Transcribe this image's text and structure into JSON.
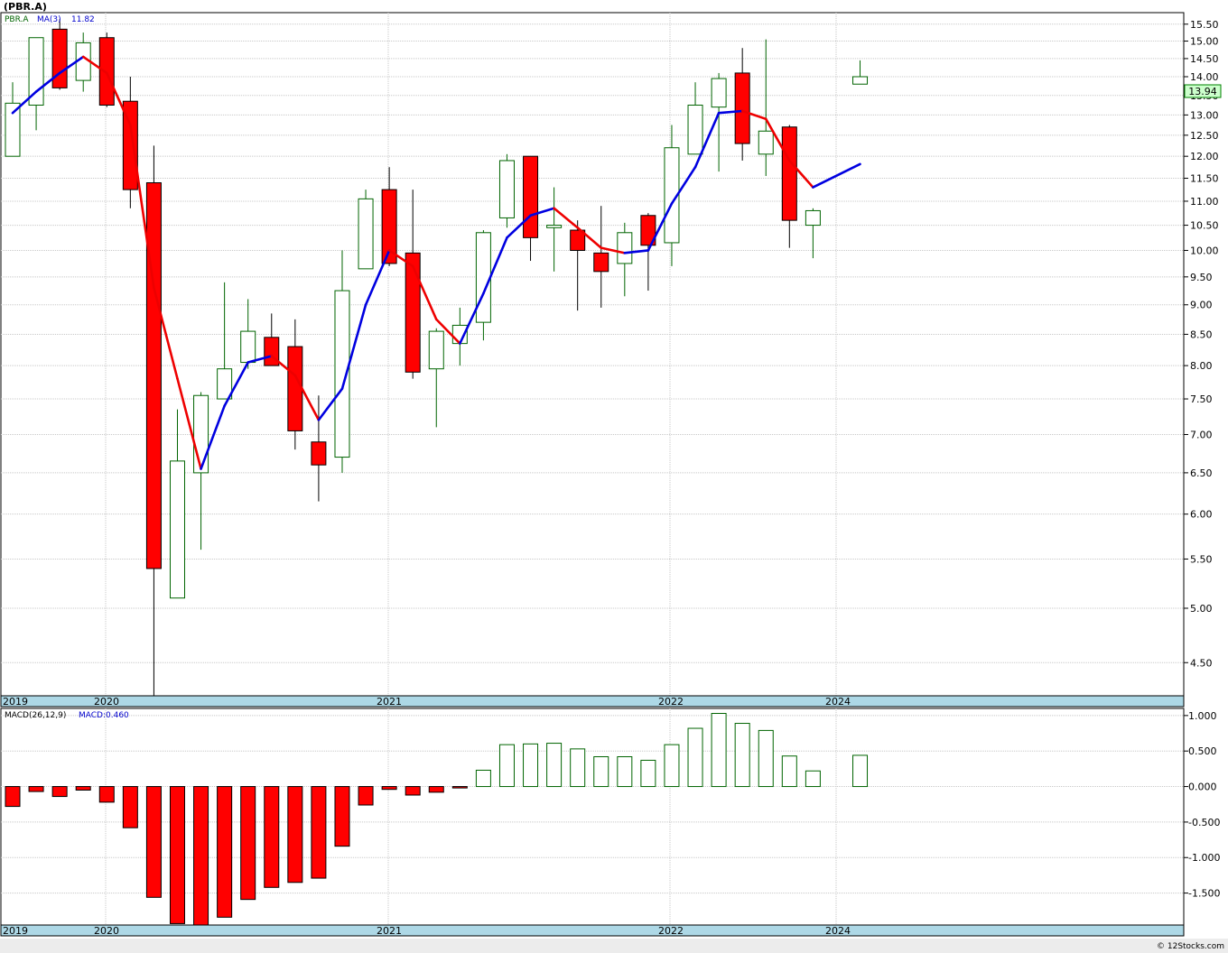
{
  "chart_data": [
    {
      "type": "candlestick",
      "title": "(PBR.A)",
      "symbol_label": "PBR.A",
      "ma_label": "MA(3)",
      "ma_value": "11.82",
      "last_price": "13.94",
      "y_scale": "log",
      "ylim": [
        4.22,
        15.85
      ],
      "y_ticks": [
        "15.50",
        "15.00",
        "14.50",
        "14.00",
        "13.50",
        "13.00",
        "12.50",
        "12.00",
        "11.50",
        "11.00",
        "10.50",
        "10.00",
        "9.50",
        "9.00",
        "8.50",
        "8.00",
        "7.50",
        "7.00",
        "6.50",
        "6.00",
        "5.50",
        "5.00",
        "4.50"
      ],
      "x_labels": [
        "2019",
        "2020",
        "2021",
        "2022",
        "2024"
      ],
      "grid": true,
      "candles": [
        {
          "o": 12.0,
          "h": 13.85,
          "l": null,
          "c": 13.3
        },
        {
          "o": 13.25,
          "h": 15.1,
          "l": 12.62,
          "c": 15.1
        },
        {
          "o": 15.35,
          "h": 15.65,
          "l": 13.65,
          "c": 13.7
        },
        {
          "o": 13.9,
          "h": 15.25,
          "l": 13.6,
          "c": 14.95
        },
        {
          "o": 15.1,
          "h": 15.25,
          "l": 13.2,
          "c": 13.25
        },
        {
          "o": 13.35,
          "h": 14.0,
          "l": 10.85,
          "c": 11.25
        },
        {
          "o": 11.4,
          "h": 12.25,
          "l": 4.2,
          "c": 5.4
        },
        {
          "o": 5.1,
          "h": 7.35,
          "l": null,
          "c": 6.65
        },
        {
          "o": 6.5,
          "h": 7.6,
          "l": 5.6,
          "c": 7.55
        },
        {
          "o": 7.5,
          "h": 9.4,
          "l": null,
          "c": 7.95
        },
        {
          "o": 8.05,
          "h": 9.1,
          "l": 7.95,
          "c": 8.55
        },
        {
          "o": 8.45,
          "h": 8.85,
          "l": 8.0,
          "c": 8.0
        },
        {
          "o": 8.3,
          "h": 8.75,
          "l": 6.8,
          "c": 7.05
        },
        {
          "o": 6.9,
          "h": 7.55,
          "l": 6.15,
          "c": 6.6
        },
        {
          "o": 6.7,
          "h": 10.0,
          "l": 6.5,
          "c": 9.25
        },
        {
          "o": 9.65,
          "h": 11.25,
          "l": null,
          "c": 11.05
        },
        {
          "o": 11.25,
          "h": 11.75,
          "l": 9.7,
          "c": 9.75
        },
        {
          "o": 9.95,
          "h": 11.25,
          "l": 7.8,
          "c": 7.9
        },
        {
          "o": 7.95,
          "h": 8.6,
          "l": 7.1,
          "c": 8.55
        },
        {
          "o": 8.35,
          "h": 8.95,
          "l": 8.0,
          "c": 8.65
        },
        {
          "o": 8.7,
          "h": 10.4,
          "l": 8.4,
          "c": 10.35
        },
        {
          "o": 10.65,
          "h": 12.05,
          "l": 10.45,
          "c": 11.9
        },
        {
          "o": 12.0,
          "h": 12.0,
          "l": 9.8,
          "c": 10.25
        },
        {
          "o": 10.45,
          "h": 11.3,
          "l": 9.6,
          "c": 10.5
        },
        {
          "o": 10.4,
          "h": 10.6,
          "l": 8.9,
          "c": 10.0
        },
        {
          "o": 9.95,
          "h": 10.9,
          "l": 8.95,
          "c": 9.6
        },
        {
          "o": 9.75,
          "h": 10.55,
          "l": 9.15,
          "c": 10.35
        },
        {
          "o": 10.7,
          "h": 10.75,
          "l": 9.25,
          "c": 10.1
        },
        {
          "o": 10.15,
          "h": 12.75,
          "l": 9.7,
          "c": 12.2
        },
        {
          "o": 12.05,
          "h": 13.85,
          "l": null,
          "c": 13.25
        },
        {
          "o": 13.2,
          "h": 14.1,
          "l": 11.65,
          "c": 13.95
        },
        {
          "o": 14.1,
          "h": 14.8,
          "l": 11.9,
          "c": 12.3
        },
        {
          "o": 12.05,
          "h": 15.05,
          "l": 11.55,
          "c": 12.6
        },
        {
          "o": 12.7,
          "h": 12.75,
          "l": 10.05,
          "c": 10.6
        },
        {
          "o": 10.5,
          "h": 10.85,
          "l": 9.85,
          "c": 10.8
        },
        {
          "o": null,
          "h": null,
          "l": null,
          "c": null
        },
        {
          "o": 13.8,
          "h": 14.45,
          "l": null,
          "c": 14.0
        }
      ],
      "ma3": [
        13.05,
        13.6,
        14.1,
        14.55,
        14.1,
        12.75,
        9.3,
        7.8,
        6.55,
        7.4,
        8.05,
        8.15,
        7.85,
        7.2,
        7.65,
        9.0,
        10.0,
        9.7,
        8.75,
        8.35,
        9.2,
        10.25,
        10.7,
        10.85,
        10.45,
        10.05,
        9.95,
        10.0,
        10.95,
        11.75,
        13.05,
        13.1,
        12.9,
        11.9,
        11.3,
        null,
        11.82
      ],
      "colors": {
        "up_wick": "#006400",
        "down": "#ff0000",
        "ma_up": "#0000e0",
        "ma_down": "#ee0000"
      }
    },
    {
      "type": "bar",
      "title": "MACD(26,12,9)",
      "value_label": "MACD:0.460",
      "ylim": [
        -1.95,
        1.1
      ],
      "y_ticks": [
        "1.000",
        "0.500",
        "0.000",
        "-0.500",
        "-1.000",
        "-1.500"
      ],
      "x_labels": [
        "2019",
        "2020",
        "2021",
        "2022",
        "2024"
      ],
      "values": [
        -0.28,
        -0.07,
        -0.14,
        -0.05,
        -0.22,
        -0.58,
        -1.56,
        -1.93,
        -1.96,
        -1.84,
        -1.59,
        -1.42,
        -1.35,
        -1.29,
        -0.84,
        -0.26,
        -0.04,
        -0.12,
        -0.08,
        -0.02,
        0.23,
        0.59,
        0.6,
        0.61,
        0.53,
        0.42,
        0.42,
        0.37,
        0.59,
        0.82,
        1.03,
        0.89,
        0.79,
        0.43,
        0.22,
        null,
        0.44
      ],
      "colors": {
        "positive": "#006400",
        "negative": "#ff0000"
      }
    }
  ],
  "footer": {
    "credit": "© 12Stocks.com"
  }
}
